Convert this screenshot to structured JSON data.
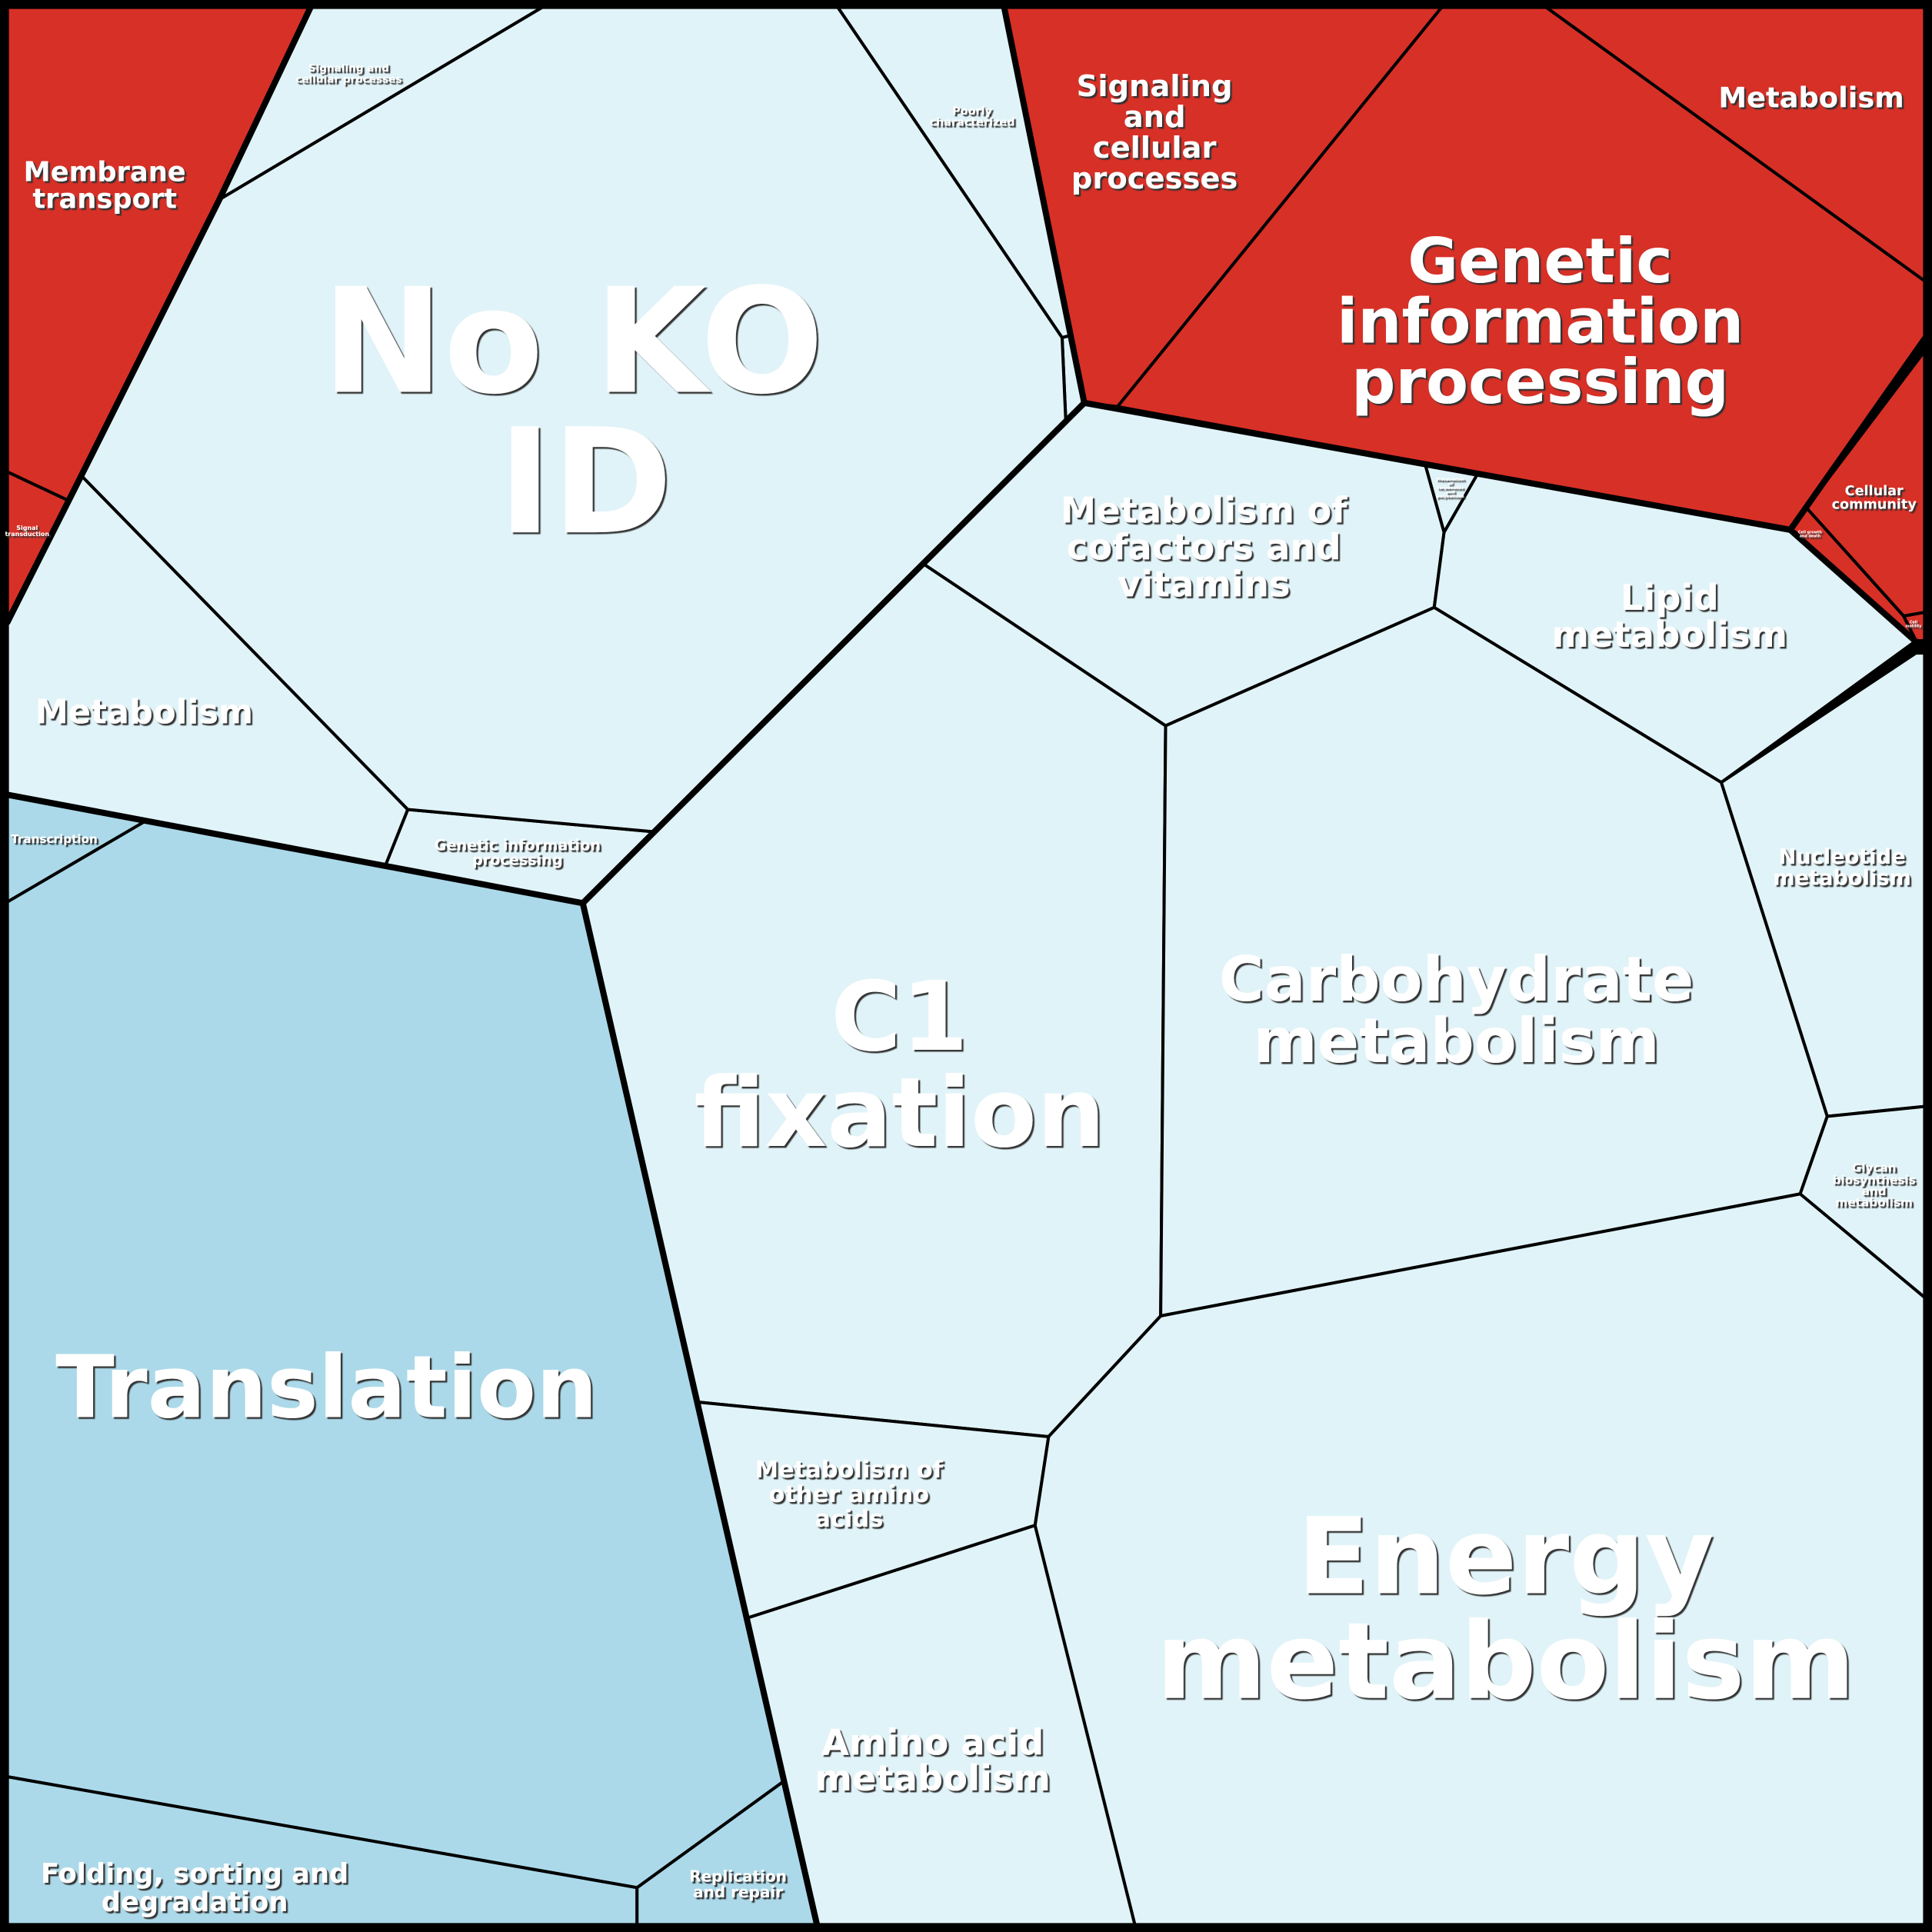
{
  "colors": {
    "enriched": "#d73027",
    "neutral_light": "#e0f3f8",
    "neutral_medium": "#abd9e9",
    "border": "#000000"
  },
  "cells": {
    "membrane_transport": [
      "Membrane",
      "transport"
    ],
    "signal_transduction": [
      "Signal",
      "transduction"
    ],
    "signaling_small": [
      "Signaling and",
      "cellular processes"
    ],
    "poorly_characterized": [
      "Poorly",
      "characterized"
    ],
    "no_ko_id": [
      "No KO",
      "ID"
    ],
    "metabolism_left": [
      "Metabolism"
    ],
    "genetic_small": [
      "Genetic information",
      "processing"
    ],
    "signaling_red": [
      "Signaling",
      "and",
      "cellular",
      "processes"
    ],
    "metabolism_red": [
      "Metabolism"
    ],
    "genetic_red": [
      "Genetic",
      "information",
      "processing"
    ],
    "cellular_community": [
      "Cellular",
      "community"
    ],
    "cell_growth": [
      "Cell growth",
      "and death"
    ],
    "cell_motility": [
      "Cell",
      "motility"
    ],
    "terpenoids": [
      "Metabolism",
      "of",
      "terpenoids",
      "and",
      "polyketides"
    ],
    "cofactors": [
      "Metabolism of",
      "cofactors and",
      "vitamins"
    ],
    "lipid": [
      "Lipid",
      "metabolism"
    ],
    "nucleotide": [
      "Nucleotide",
      "metabolism"
    ],
    "glycan": [
      "Glycan",
      "biosynthesis",
      "and",
      "metabolism"
    ],
    "carbohydrate": [
      "Carbohydrate",
      "metabolism"
    ],
    "c1_fixation": [
      "C1",
      "fixation"
    ],
    "energy": [
      "Energy",
      "metabolism"
    ],
    "other_amino": [
      "Metabolism of",
      "other amino",
      "acids"
    ],
    "amino_acid": [
      "Amino acid",
      "metabolism"
    ],
    "transcription": [
      "Transcription"
    ],
    "translation": [
      "Translation"
    ],
    "folding": [
      "Folding, sorting and",
      "degradation"
    ],
    "replication": [
      "Replication",
      "and repair"
    ]
  }
}
